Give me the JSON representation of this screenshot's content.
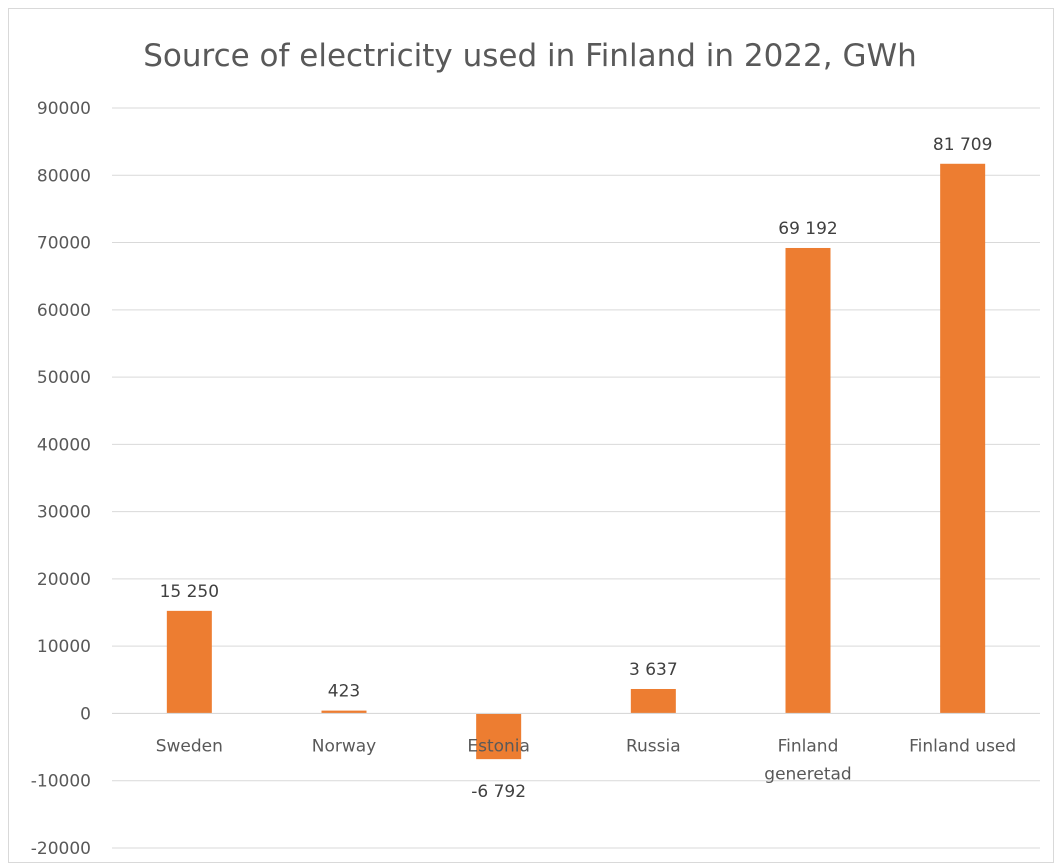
{
  "chart_data": {
    "type": "bar",
    "title": "Source of electricity used in Finland in 2022, GWh",
    "xlabel": "",
    "ylabel": "",
    "categories": [
      [
        "Sweden"
      ],
      [
        "Norway"
      ],
      [
        "Estonia"
      ],
      [
        "Russia"
      ],
      [
        "Finland",
        "generetad"
      ],
      [
        "Finland used"
      ]
    ],
    "values": [
      15250,
      423,
      -6792,
      3637,
      69192,
      81709
    ],
    "data_labels": [
      "15 250",
      "423",
      "-6 792",
      "3 637",
      "69 192",
      "81 709"
    ],
    "ylim": [
      -20000,
      90000
    ],
    "yticks": [
      90000,
      80000,
      70000,
      60000,
      50000,
      40000,
      30000,
      20000,
      10000,
      0,
      -10000,
      -20000
    ],
    "ytick_labels": [
      "90000",
      "80000",
      "70000",
      "60000",
      "50000",
      "40000",
      "30000",
      "20000",
      "10000",
      "0",
      "-10000",
      "-20000"
    ],
    "grid": true,
    "legend": "none",
    "bar_color": "#ED7D31",
    "grid_color": "#D9D9D9"
  }
}
